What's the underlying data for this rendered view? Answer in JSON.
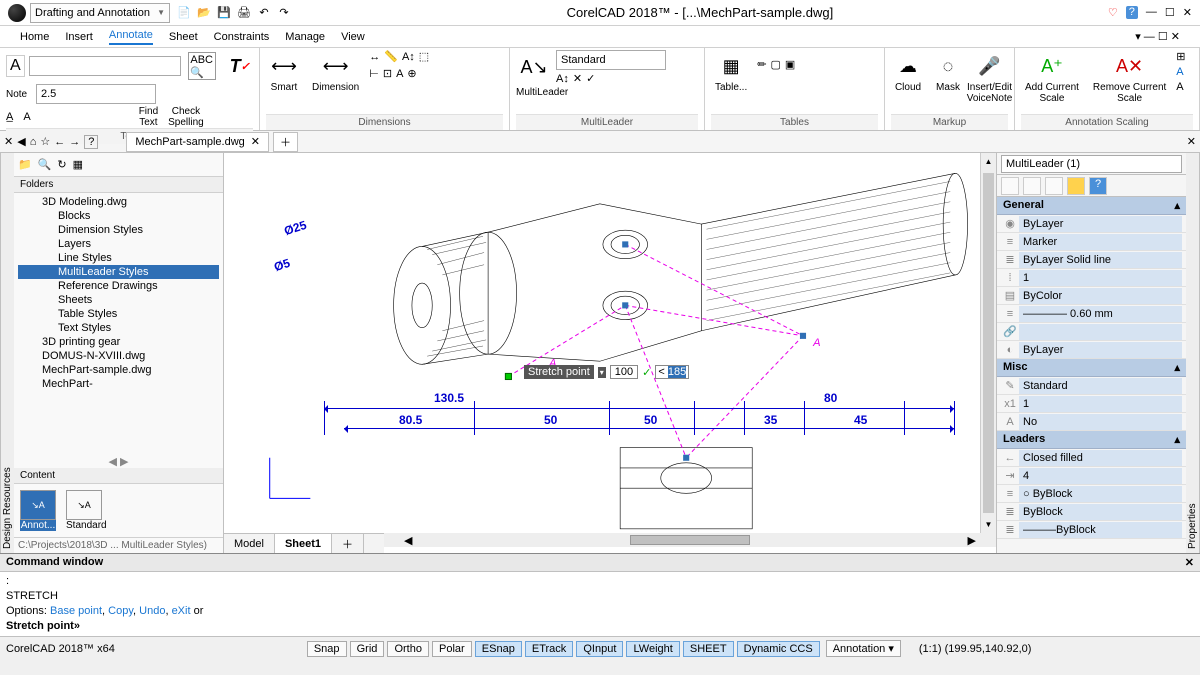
{
  "title": "CorelCAD 2018™ - [...\\MechPart-sample.dwg]",
  "workspace": "Drafting and Annotation",
  "menus": [
    "Home",
    "Insert",
    "Annotate",
    "Sheet",
    "Constraints",
    "Manage",
    "View"
  ],
  "menu_active": "Annotate",
  "doc_tab": "MechPart-sample.dwg",
  "panels": {
    "text": {
      "label": "Text",
      "size": "2.5",
      "note": "Note",
      "find": "Find\nText",
      "check": "Check\nSpelling"
    },
    "dims": {
      "label": "Dimensions",
      "smart": "Smart",
      "dimension": "Dimension"
    },
    "ml": {
      "label": "MultiLeader",
      "btn": "MultiLeader",
      "style": "Standard"
    },
    "tbl": {
      "label": "Tables",
      "btn": "Table..."
    },
    "mk": {
      "label": "Markup",
      "cloud": "Cloud",
      "mask": "Mask",
      "voice": "Insert/Edit\nVoiceNote"
    },
    "as": {
      "label": "Annotation Scaling",
      "add": "Add Current\nScale",
      "rem": "Remove Current\nScale"
    }
  },
  "folders_label": "Folders",
  "content_label": "Content",
  "tree": [
    {
      "t": "3D Modeling.dwg",
      "l": 1
    },
    {
      "t": "Blocks",
      "l": 2
    },
    {
      "t": "Dimension Styles",
      "l": 2
    },
    {
      "t": "Layers",
      "l": 2
    },
    {
      "t": "Line Styles",
      "l": 2
    },
    {
      "t": "MultiLeader Styles",
      "l": 2,
      "sel": true
    },
    {
      "t": "Reference Drawings",
      "l": 2
    },
    {
      "t": "Sheets",
      "l": 2
    },
    {
      "t": "Table Styles",
      "l": 2
    },
    {
      "t": "Text Styles",
      "l": 2
    },
    {
      "t": "3D printing gear",
      "l": 1
    },
    {
      "t": "DOMUS-N-XVIII.dwg",
      "l": 1
    },
    {
      "t": "MechPart-sample.dwg",
      "l": 1
    },
    {
      "t": "MechPart-",
      "l": 1
    }
  ],
  "thumbs": [
    "Annot...",
    "Standard"
  ],
  "path_label": "C:\\Projects\\2018\\3D ... MultiLeader Styles)",
  "model_tabs": [
    "Model",
    "Sheet1"
  ],
  "dims": {
    "d1": "Ø25",
    "d2": "Ø5",
    "d3": "130.5",
    "d4": "80.5",
    "d5": "50",
    "d6": "50",
    "d7": "35",
    "d8": "45",
    "d9": "80"
  },
  "stretch": {
    "label": "Stretch point",
    "v1": "100",
    "v2": "185"
  },
  "props_title": "MultiLeader (1)",
  "cat_general": "General",
  "cat_misc": "Misc",
  "cat_leaders": "Leaders",
  "props": {
    "p1": "ByLayer",
    "p2": "Marker",
    "p3": "ByLayer   Solid line",
    "p4": "1",
    "p5": "ByColor",
    "p6": "———— 0.60 mm",
    "p7": "",
    "p8": "ByLayer",
    "m1": "Standard",
    "m2": "1",
    "m3": "No",
    "l1": "Closed filled",
    "l2": "4",
    "l3": "○ ByBlock",
    "l4": "ByBlock",
    "l5": "———ByBlock"
  },
  "cmd_title": "Command window",
  "cmd_l1": ":",
  "cmd_l2": "STRETCH",
  "cmd_opts_pre": "Options: ",
  "cmd_o1": "Base point",
  "cmd_o2": "Copy",
  "cmd_o3": "Undo",
  "cmd_o4": "eXit",
  "cmd_or": " or",
  "cmd_l4": "Stretch point»",
  "status_app": "CorelCAD 2018™ x64",
  "status_btns": [
    "Snap",
    "Grid",
    "Ortho",
    "Polar",
    "ESnap",
    "ETrack",
    "QInput",
    "LWeight",
    "SHEET",
    "Dynamic CCS"
  ],
  "status_anno": "Annotation",
  "status_coord": "(1:1) (199.95,140.92,0)",
  "left_tab": "Design Resources",
  "right_tab": "Properties"
}
